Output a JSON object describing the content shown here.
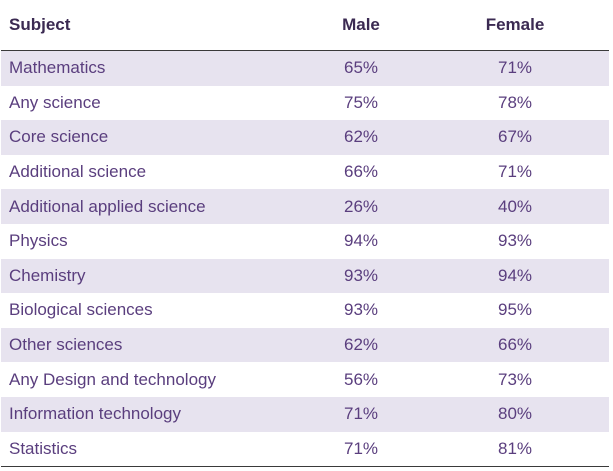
{
  "table": {
    "headers": {
      "subject": "Subject",
      "male": "Male",
      "female": "Female"
    },
    "rows": [
      {
        "subject": "Mathematics",
        "male": "65%",
        "female": "71%"
      },
      {
        "subject": "Any science",
        "male": "75%",
        "female": "78%"
      },
      {
        "subject": "Core science",
        "male": "62%",
        "female": "67%"
      },
      {
        "subject": "Additional science",
        "male": "66%",
        "female": "71%"
      },
      {
        "subject": "Additional applied science",
        "male": "26%",
        "female": "40%"
      },
      {
        "subject": "Physics",
        "male": "94%",
        "female": "93%"
      },
      {
        "subject": "Chemistry",
        "male": "93%",
        "female": "94%"
      },
      {
        "subject": "Biological sciences",
        "male": "93%",
        "female": "95%"
      },
      {
        "subject": "Other sciences",
        "male": "62%",
        "female": "66%"
      },
      {
        "subject": "Any Design and technology",
        "male": "56%",
        "female": "73%"
      },
      {
        "subject": "Information technology",
        "male": "71%",
        "female": "80%"
      },
      {
        "subject": "Statistics",
        "male": "71%",
        "female": "81%"
      }
    ]
  },
  "colors": {
    "header_text": "#3b2a52",
    "body_text": "#5a3e7e",
    "stripe": "#e7e3ef",
    "rule": "#3a3a3a"
  }
}
